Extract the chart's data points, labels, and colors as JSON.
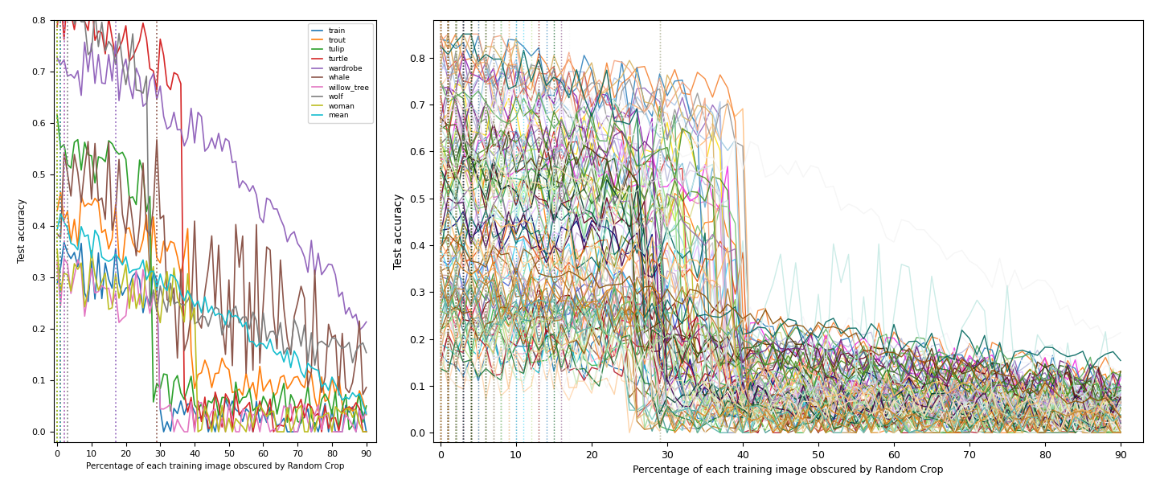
{
  "xlabel": "Percentage of each training image obscured by Random Crop",
  "ylabel": "Test accuracy",
  "xlim_left": [
    -1,
    93
  ],
  "xlim_right": [
    -1,
    93
  ],
  "ylim_left": [
    -0.02,
    0.8
  ],
  "ylim_right": [
    -0.02,
    0.88
  ],
  "xticks": [
    0,
    10,
    20,
    30,
    40,
    50,
    60,
    70,
    80,
    90
  ],
  "x_values": [
    0,
    1,
    2,
    3,
    4,
    5,
    6,
    7,
    8,
    9,
    10,
    11,
    12,
    13,
    14,
    15,
    16,
    17,
    18,
    19,
    20,
    21,
    22,
    23,
    24,
    25,
    26,
    27,
    28,
    29,
    30,
    31,
    32,
    33,
    34,
    35,
    36,
    37,
    38,
    39,
    40,
    41,
    42,
    43,
    44,
    45,
    46,
    47,
    48,
    49,
    50,
    51,
    52,
    53,
    54,
    55,
    56,
    57,
    58,
    59,
    60,
    61,
    62,
    63,
    64,
    65,
    66,
    67,
    68,
    69,
    70,
    71,
    72,
    73,
    74,
    75,
    76,
    77,
    78,
    79,
    80,
    81,
    82,
    83,
    84,
    85,
    86,
    87,
    88,
    89,
    90
  ],
  "last_classes": [
    "train",
    "trout",
    "tulip",
    "turtle",
    "wardrobe",
    "whale",
    "willow_tree",
    "wolf",
    "woman",
    "mean"
  ],
  "last_class_colors": [
    "#1f77b4",
    "#ff7f0e",
    "#2ca02c",
    "#d62728",
    "#9467bd",
    "#8c564b",
    "#e377c2",
    "#7f7f7f",
    "#bcbd22",
    "#17becf"
  ],
  "background_color": "#ffffff",
  "figsize": [
    14.43,
    6.12
  ],
  "dpi": 100
}
